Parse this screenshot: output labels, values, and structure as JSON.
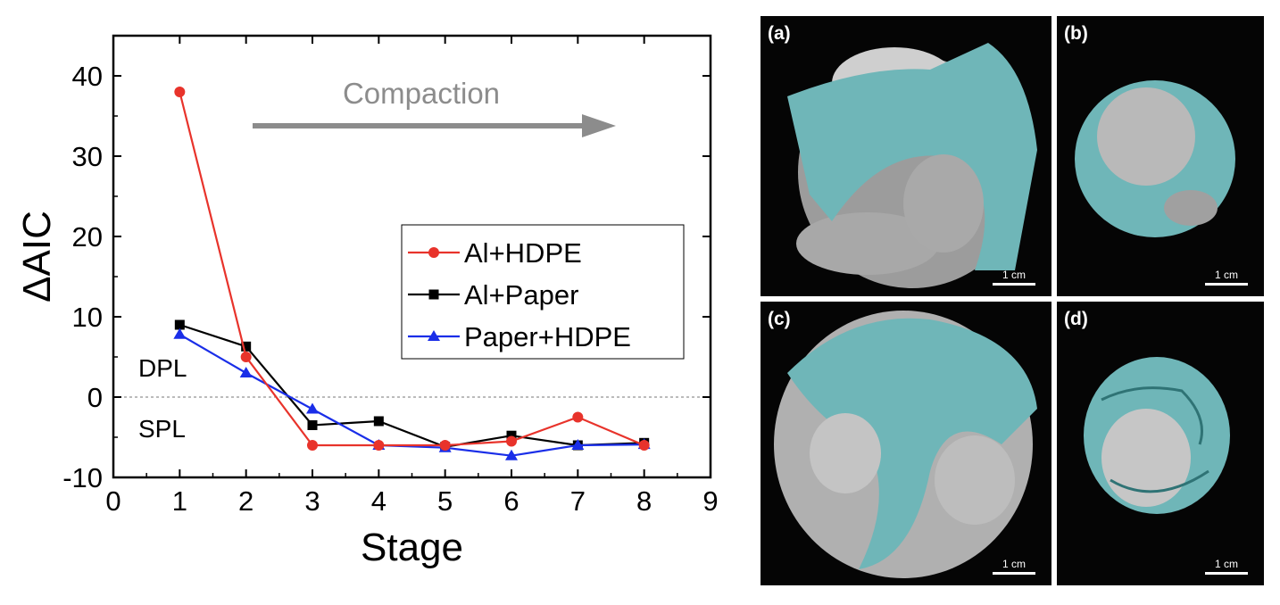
{
  "chart_data": {
    "type": "line",
    "xlabel": "Stage",
    "ylabel": "ΔAIC",
    "xlim": [
      0,
      9
    ],
    "ylim": [
      -10,
      45
    ],
    "xticks": [
      0,
      1,
      2,
      3,
      4,
      5,
      6,
      7,
      8,
      9
    ],
    "yticks": [
      -10,
      0,
      10,
      20,
      30,
      40
    ],
    "reference_line": {
      "y": 0,
      "style": "dashed"
    },
    "annotations": [
      {
        "text": "Compaction",
        "style": "arrow",
        "color": "#8c8c8c"
      },
      {
        "text": "DPL"
      },
      {
        "text": "SPL"
      }
    ],
    "legend_position": "right-middle",
    "series": [
      {
        "name": "Al+HDPE",
        "color": "#e8332b",
        "marker": "circle",
        "x": [
          1,
          2,
          3,
          4,
          5,
          6,
          7,
          8
        ],
        "y": [
          38,
          5,
          -6,
          -6,
          -6,
          -5.5,
          -2.5,
          -6
        ]
      },
      {
        "name": "Al+Paper",
        "color": "#000000",
        "marker": "square",
        "x": [
          1,
          2,
          3,
          4,
          5,
          6,
          7,
          8
        ],
        "y": [
          9,
          6.3,
          -3.5,
          -3,
          -6.2,
          -4.8,
          -6,
          -5.7
        ]
      },
      {
        "name": "Paper+HDPE",
        "color": "#1a2ee8",
        "marker": "triangle",
        "x": [
          1,
          2,
          3,
          4,
          5,
          6,
          7,
          8
        ],
        "y": [
          7.8,
          3,
          -1.5,
          -6,
          -6.3,
          -7.3,
          -6,
          -5.9
        ]
      }
    ]
  },
  "panels": [
    {
      "label": "(a)",
      "scale": "1 cm"
    },
    {
      "label": "(b)",
      "scale": "1 cm"
    },
    {
      "label": "(c)",
      "scale": "1 cm"
    },
    {
      "label": "(d)",
      "scale": "1 cm"
    }
  ],
  "colors": {
    "paper": "#6fb6b8",
    "foil": "#b9b9b9",
    "background": "#050505"
  }
}
